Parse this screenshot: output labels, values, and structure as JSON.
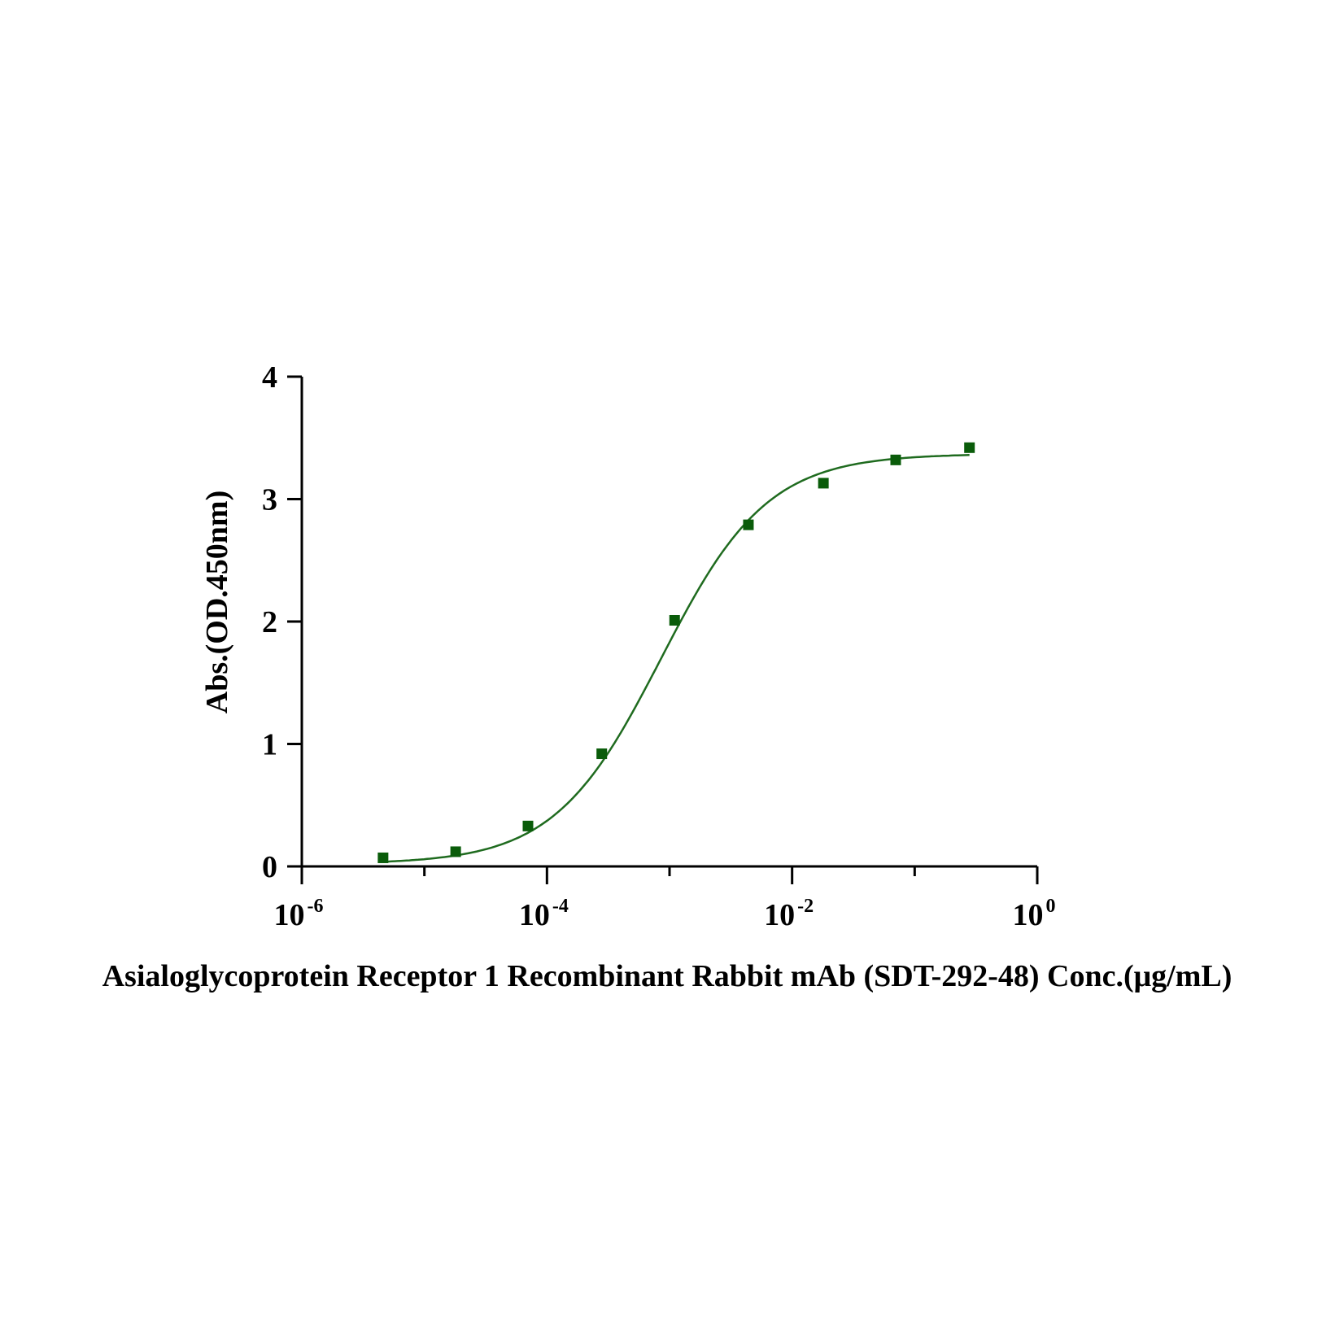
{
  "chart_data": {
    "type": "scatter",
    "title": "",
    "xlabel": "Asialoglycoprotein Receptor 1 Recombinant Rabbit mAb (SDT-292-48) Conc.(μg/mL)",
    "ylabel": "Abs.(OD.450nm)",
    "x_scale": "log",
    "xlim": [
      1e-06,
      1
    ],
    "ylim": [
      0,
      4
    ],
    "grid": false,
    "y_ticks": [
      "0",
      "1",
      "2",
      "3",
      "4"
    ],
    "x_ticks": [
      {
        "base": "10",
        "exp": "-6"
      },
      {
        "base": "10",
        "exp": "-4"
      },
      {
        "base": "10",
        "exp": "-2"
      },
      {
        "base": "10",
        "exp": "0"
      }
    ],
    "series": [
      {
        "x": [
          4.6e-06,
          1.8e-05,
          7e-05,
          0.00028,
          0.0011,
          0.0044,
          0.018,
          0.07,
          0.28
        ],
        "y": [
          0.07,
          0.12,
          0.33,
          0.92,
          2.01,
          2.79,
          3.13,
          3.32,
          3.42
        ],
        "fit": "4PL",
        "color": "#1f6b1f",
        "marker_color": "#0a5c0a"
      }
    ]
  }
}
